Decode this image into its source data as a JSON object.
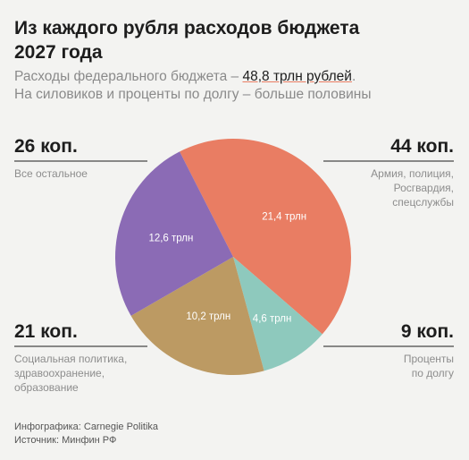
{
  "chart_data": {
    "type": "pie",
    "title": "Из каждого рубля расходов бюджета\n2027 года",
    "subtitle": [
      "Расходы федерального бюджета – ",
      "48,8 трлн рублей",
      ".",
      "На силовиков и проценты по долгу – больше половины"
    ],
    "categories": [
      "Армия, полиция,\nРосгвардия,\nспецслужбы",
      "Проценты\nпо долгу",
      "Социальная политика,\nздравоохранение,\nобразование",
      "Все остальное"
    ],
    "values": [
      21.4,
      4.6,
      10.2,
      12.6
    ],
    "value_labels": [
      "21,4 трлн",
      "4,6 трлн",
      "10,2 трлн",
      "12,6 трлн"
    ],
    "share_labels": [
      "44 коп.",
      "9 коп.",
      "21 коп.",
      "26 коп."
    ],
    "colors": [
      "#e97d63",
      "#8ec9bd",
      "#bc9a63",
      "#8b6bb5"
    ],
    "label_positions": [
      "top-right",
      "bottom-right",
      "bottom-left",
      "top-left"
    ],
    "credit": "Инфографика: Carnegie Politika",
    "source": "Источник: Минфин РФ"
  }
}
